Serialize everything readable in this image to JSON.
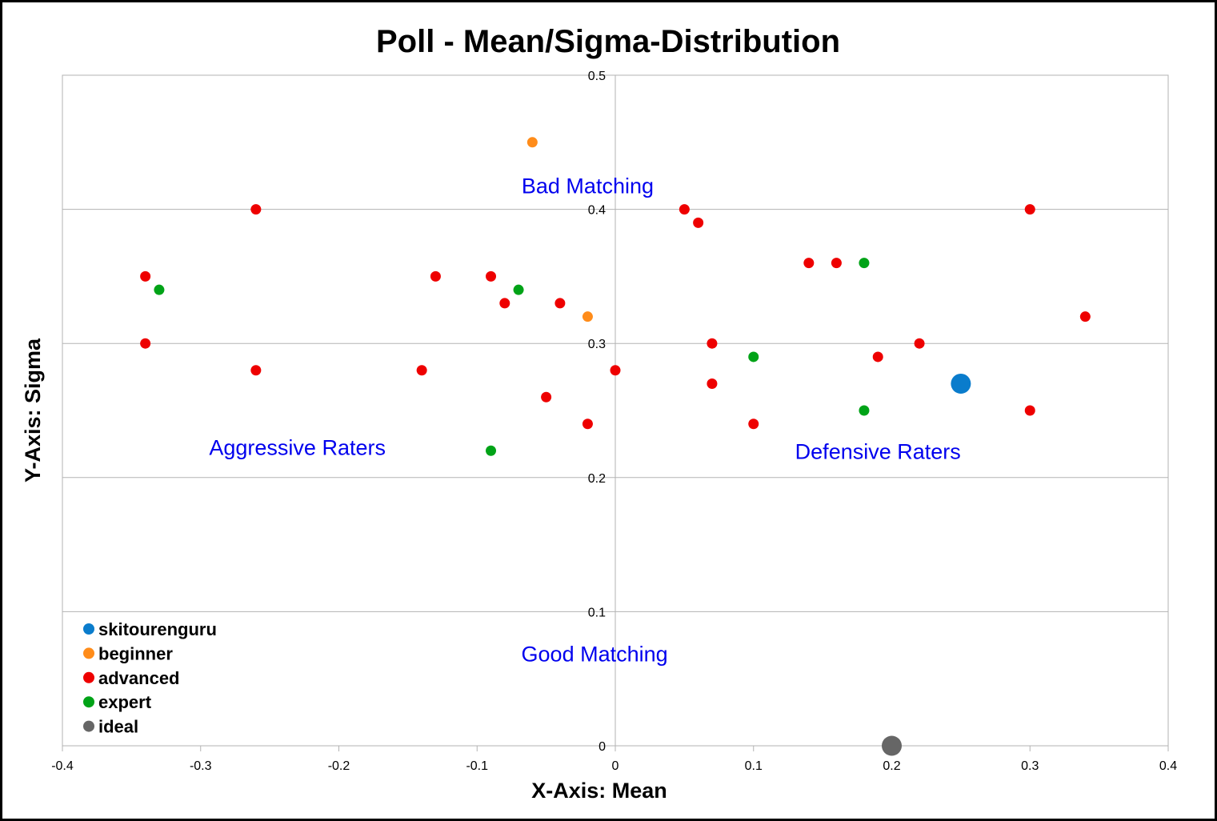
{
  "chart_data": {
    "type": "scatter",
    "title": "Poll - Mean/Sigma-Distribution",
    "xlabel": "X-Axis: Mean",
    "ylabel": "Y-Axis: Sigma",
    "xlim": [
      -0.4,
      0.4
    ],
    "ylim": [
      0,
      0.5
    ],
    "x_ticks": [
      "-0.4",
      "-0.3",
      "-0.2",
      "-0.1",
      "0",
      "0.1",
      "0.2",
      "0.3",
      "0.4"
    ],
    "y_ticks": [
      "0",
      "0.1",
      "0.2",
      "0.3",
      "0.4",
      "0.5"
    ],
    "grid": true,
    "legend_position": "bottom-left",
    "annotations": [
      {
        "text": "Bad Matching",
        "x": -0.02,
        "y": 0.418,
        "color": "#0000ee"
      },
      {
        "text": "Aggressive Raters",
        "x": -0.23,
        "y": 0.223,
        "color": "#0000ee"
      },
      {
        "text": "Defensive Raters",
        "x": 0.19,
        "y": 0.22,
        "color": "#0000ee"
      },
      {
        "text": "Good Matching",
        "x": -0.015,
        "y": 0.069,
        "color": "#0000ee"
      }
    ],
    "series": [
      {
        "name": "skitourenguru",
        "color": "#0a7ccc",
        "size": "large",
        "points": [
          [
            0.25,
            0.27
          ]
        ]
      },
      {
        "name": "beginner",
        "color": "#ff8c1a",
        "size": "small",
        "points": [
          [
            -0.06,
            0.45
          ],
          [
            -0.02,
            0.32
          ]
        ]
      },
      {
        "name": "advanced",
        "color": "#ee0000",
        "size": "small",
        "points": [
          [
            -0.26,
            0.4
          ],
          [
            -0.34,
            0.35
          ],
          [
            -0.34,
            0.3
          ],
          [
            -0.26,
            0.28
          ],
          [
            -0.14,
            0.28
          ],
          [
            -0.13,
            0.35
          ],
          [
            -0.09,
            0.35
          ],
          [
            -0.08,
            0.33
          ],
          [
            -0.04,
            0.33
          ],
          [
            -0.05,
            0.26
          ],
          [
            -0.02,
            0.24
          ],
          [
            0.0,
            0.28
          ],
          [
            0.05,
            0.4
          ],
          [
            0.06,
            0.39
          ],
          [
            0.07,
            0.3
          ],
          [
            0.07,
            0.27
          ],
          [
            0.1,
            0.24
          ],
          [
            0.14,
            0.36
          ],
          [
            0.16,
            0.36
          ],
          [
            0.19,
            0.29
          ],
          [
            0.22,
            0.3
          ],
          [
            0.3,
            0.4
          ],
          [
            0.34,
            0.32
          ],
          [
            0.3,
            0.25
          ]
        ]
      },
      {
        "name": "expert",
        "color": "#00a317",
        "size": "small",
        "points": [
          [
            -0.33,
            0.34
          ],
          [
            -0.07,
            0.34
          ],
          [
            -0.09,
            0.22
          ],
          [
            0.1,
            0.29
          ],
          [
            0.18,
            0.36
          ],
          [
            0.18,
            0.25
          ]
        ]
      },
      {
        "name": "ideal",
        "color": "#666666",
        "size": "large",
        "points": [
          [
            0.2,
            0.0
          ]
        ]
      }
    ]
  }
}
